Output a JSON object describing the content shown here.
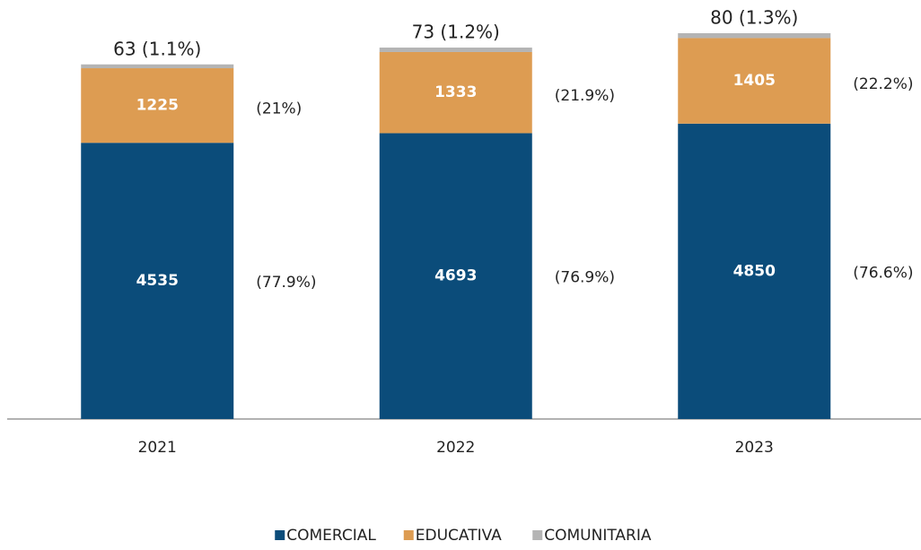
{
  "chart_data": {
    "type": "stacked_bar",
    "categories": [
      "2021",
      "2022",
      "2023"
    ],
    "series": [
      {
        "name": "COMERCIAL",
        "color": "#0b4c7a",
        "values": [
          4535,
          4693,
          4850
        ],
        "percent_labels": [
          "(77.9%)",
          "(76.9%)",
          "(76.6%)"
        ]
      },
      {
        "name": "EDUCATIVA",
        "color": "#dd9c52",
        "values": [
          1225,
          1333,
          1405
        ],
        "percent_labels": [
          "(21%)",
          "(21.9%)",
          "(22.2%)"
        ]
      },
      {
        "name": "COMUNITARIA",
        "color": "#b4b4b4",
        "values": [
          63,
          73,
          80
        ],
        "value_labels": [
          "63 (1.1%)",
          "73 (1.2%)",
          "80 (1.3%)"
        ]
      }
    ],
    "legend": "bottom"
  }
}
